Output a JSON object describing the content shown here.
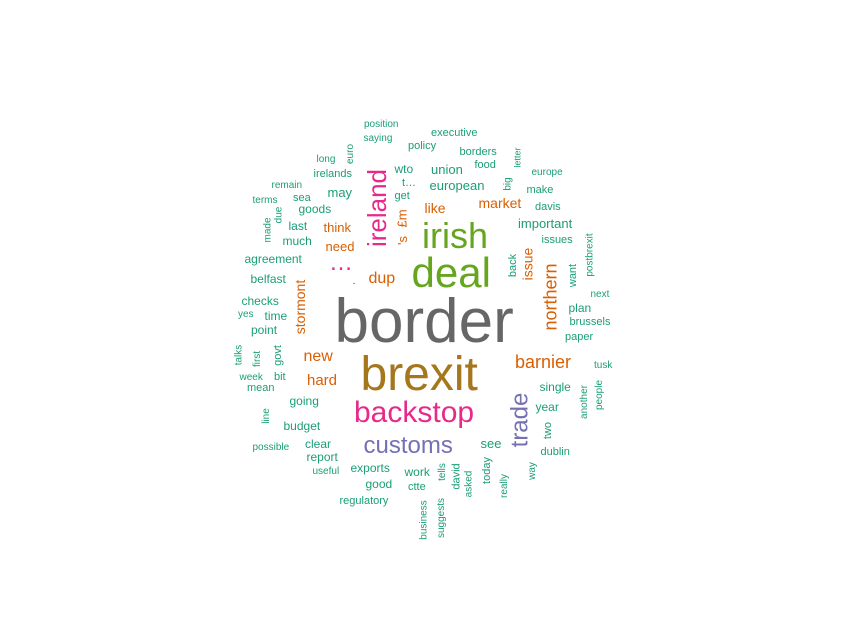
{
  "colors": {
    "c1": "#1b9e77",
    "c2": "#d95f02",
    "c3": "#7570b3",
    "c4": "#e7298a",
    "c5": "#66a61e",
    "c6": "#a6761d",
    "c7": "#666666"
  },
  "words": [
    {
      "text": "border",
      "color": "c7",
      "weight": 10
    },
    {
      "text": "brexit",
      "color": "c6",
      "weight": 8
    },
    {
      "text": "deal",
      "color": "c5",
      "weight": 7
    },
    {
      "text": "irish",
      "color": "c5",
      "weight": 6
    },
    {
      "text": "backstop",
      "color": "c4",
      "weight": 5
    },
    {
      "text": "customs",
      "color": "c3",
      "weight": 4
    },
    {
      "text": "ireland",
      "color": "c4",
      "weight": 4
    },
    {
      "text": "trade",
      "color": "c3",
      "weight": 4
    },
    {
      "text": "…",
      "color": "c4",
      "weight": 4
    },
    {
      "text": "barnier",
      "color": "c2",
      "weight": 3
    },
    {
      "text": "northern",
      "color": "c2",
      "weight": 3
    },
    {
      "text": "dup",
      "color": "c2",
      "weight": 3
    },
    {
      "text": "new",
      "color": "c2",
      "weight": 3
    },
    {
      "text": "hard",
      "color": "c2",
      "weight": 3
    },
    {
      "text": "stormont",
      "color": "c2",
      "weight": 3
    },
    {
      "text": "market",
      "color": "c2",
      "weight": 2
    },
    {
      "text": "issue",
      "color": "c2",
      "weight": 2
    },
    {
      "text": "like",
      "color": "c2",
      "weight": 2
    },
    {
      "text": "think",
      "color": "c2",
      "weight": 2
    },
    {
      "text": "need",
      "color": "c2",
      "weight": 2
    },
    {
      "text": "'s",
      "color": "c2",
      "weight": 2
    },
    {
      "text": "£m",
      "color": "c2",
      "weight": 2
    },
    {
      "text": "important",
      "color": "c1",
      "weight": 2
    },
    {
      "text": "union",
      "color": "c1",
      "weight": 2
    },
    {
      "text": "european",
      "color": "c1",
      "weight": 2
    },
    {
      "text": "may",
      "color": "c1",
      "weight": 2
    },
    {
      "text": "see",
      "color": "c1",
      "weight": 2
    },
    {
      "text": "agreement",
      "color": "c1",
      "weight": 1
    },
    {
      "text": "goods",
      "color": "c1",
      "weight": 1
    },
    {
      "text": "last",
      "color": "c1",
      "weight": 1
    },
    {
      "text": "much",
      "color": "c1",
      "weight": 1
    },
    {
      "text": "belfast",
      "color": "c1",
      "weight": 1
    },
    {
      "text": "checks",
      "color": "c1",
      "weight": 1
    },
    {
      "text": "time",
      "color": "c1",
      "weight": 1
    },
    {
      "text": "point",
      "color": "c1",
      "weight": 1
    },
    {
      "text": "govt",
      "color": "c1",
      "weight": 1
    },
    {
      "text": "bit",
      "color": "c1",
      "weight": 1
    },
    {
      "text": "going",
      "color": "c1",
      "weight": 1
    },
    {
      "text": "budget",
      "color": "c1",
      "weight": 1
    },
    {
      "text": "clear",
      "color": "c1",
      "weight": 1
    },
    {
      "text": "report",
      "color": "c1",
      "weight": 1
    },
    {
      "text": "exports",
      "color": "c1",
      "weight": 1
    },
    {
      "text": "good",
      "color": "c1",
      "weight": 1
    },
    {
      "text": "regulatory",
      "color": "c1",
      "weight": 1
    },
    {
      "text": "work",
      "color": "c1",
      "weight": 1
    },
    {
      "text": "ctte",
      "color": "c1",
      "weight": 1
    },
    {
      "text": "single",
      "color": "c1",
      "weight": 1
    },
    {
      "text": "year",
      "color": "c1",
      "weight": 1
    },
    {
      "text": "dublin",
      "color": "c1",
      "weight": 1
    },
    {
      "text": "plan",
      "color": "c1",
      "weight": 1
    },
    {
      "text": "brussels",
      "color": "c1",
      "weight": 1
    },
    {
      "text": "paper",
      "color": "c1",
      "weight": 1
    },
    {
      "text": "issues",
      "color": "c1",
      "weight": 1
    },
    {
      "text": "davis",
      "color": "c1",
      "weight": 1
    },
    {
      "text": "make",
      "color": "c1",
      "weight": 1
    },
    {
      "text": "europe",
      "color": "c1",
      "weight": 1
    },
    {
      "text": "borders",
      "color": "c1",
      "weight": 1
    },
    {
      "text": "food",
      "color": "c1",
      "weight": 1
    },
    {
      "text": "policy",
      "color": "c1",
      "weight": 1
    },
    {
      "text": "executive",
      "color": "c1",
      "weight": 1
    },
    {
      "text": "position",
      "color": "c1",
      "weight": 1
    },
    {
      "text": "saying",
      "color": "c1",
      "weight": 1
    },
    {
      "text": "wto",
      "color": "c1",
      "weight": 1
    },
    {
      "text": "t…",
      "color": "c1",
      "weight": 1
    },
    {
      "text": "get",
      "color": "c1",
      "weight": 1
    },
    {
      "text": "irelands",
      "color": "c1",
      "weight": 1
    },
    {
      "text": "long",
      "color": "c1",
      "weight": 1
    },
    {
      "text": "euro",
      "color": "c1",
      "weight": 1
    },
    {
      "text": "remain",
      "color": "c1",
      "weight": 1
    },
    {
      "text": "sea",
      "color": "c1",
      "weight": 1
    },
    {
      "text": "terms",
      "color": "c1",
      "weight": 1
    },
    {
      "text": "due",
      "color": "c1",
      "weight": 1
    },
    {
      "text": "made",
      "color": "c1",
      "weight": 1
    },
    {
      "text": "yes",
      "color": "c1",
      "weight": 1
    },
    {
      "text": "talks",
      "color": "c1",
      "weight": 1
    },
    {
      "text": "first",
      "color": "c1",
      "weight": 1
    },
    {
      "text": "week",
      "color": "c1",
      "weight": 1
    },
    {
      "text": "mean",
      "color": "c1",
      "weight": 1
    },
    {
      "text": "line",
      "color": "c1",
      "weight": 1
    },
    {
      "text": "possible",
      "color": "c1",
      "weight": 1
    },
    {
      "text": "useful",
      "color": "c1",
      "weight": 1
    },
    {
      "text": "business",
      "color": "c1",
      "weight": 1
    },
    {
      "text": "suggests",
      "color": "c1",
      "weight": 1
    },
    {
      "text": "asked",
      "color": "c1",
      "weight": 1
    },
    {
      "text": "tells",
      "color": "c1",
      "weight": 1
    },
    {
      "text": "david",
      "color": "c1",
      "weight": 1
    },
    {
      "text": "today",
      "color": "c1",
      "weight": 1
    },
    {
      "text": "really",
      "color": "c1",
      "weight": 1
    },
    {
      "text": "way",
      "color": "c1",
      "weight": 1
    },
    {
      "text": "two",
      "color": "c1",
      "weight": 1
    },
    {
      "text": "another",
      "color": "c1",
      "weight": 1
    },
    {
      "text": "people",
      "color": "c1",
      "weight": 1
    },
    {
      "text": "tusk",
      "color": "c1",
      "weight": 1
    },
    {
      "text": "next",
      "color": "c1",
      "weight": 1
    },
    {
      "text": "want",
      "color": "c1",
      "weight": 1
    },
    {
      "text": "postbrexit",
      "color": "c1",
      "weight": 1
    },
    {
      "text": "back",
      "color": "c1",
      "weight": 1
    },
    {
      "text": "big",
      "color": "c1",
      "weight": 1
    },
    {
      "text": "letter",
      "color": "c1",
      "weight": 1
    },
    {
      "text": "-",
      "color": "c1",
      "weight": 1
    }
  ]
}
